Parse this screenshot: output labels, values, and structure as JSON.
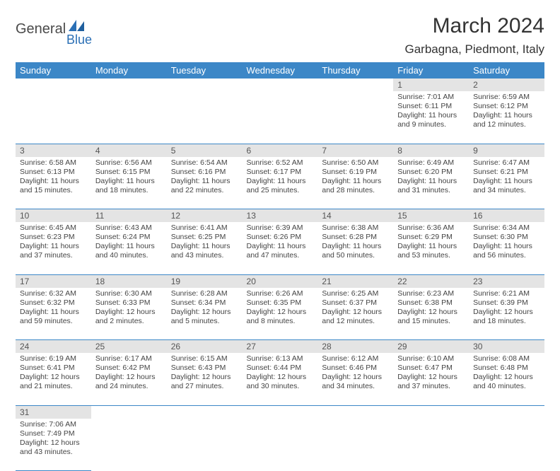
{
  "logo": {
    "text1": "General",
    "text2": "Blue"
  },
  "title": "March 2024",
  "location": "Garbagna, Piedmont, Italy",
  "colors": {
    "header_bg": "#3c87c7",
    "header_fg": "#ffffff",
    "daynum_bg": "#e4e4e4",
    "border": "#3c87c7",
    "logo_accent": "#2a6fb5",
    "logo_text": "#4a4a4a"
  },
  "weekdays": [
    "Sunday",
    "Monday",
    "Tuesday",
    "Wednesday",
    "Thursday",
    "Friday",
    "Saturday"
  ],
  "weeks": [
    [
      null,
      null,
      null,
      null,
      null,
      {
        "n": "1",
        "sunrise": "Sunrise: 7:01 AM",
        "sunset": "Sunset: 6:11 PM",
        "daylight": "Daylight: 11 hours and 9 minutes."
      },
      {
        "n": "2",
        "sunrise": "Sunrise: 6:59 AM",
        "sunset": "Sunset: 6:12 PM",
        "daylight": "Daylight: 11 hours and 12 minutes."
      }
    ],
    [
      {
        "n": "3",
        "sunrise": "Sunrise: 6:58 AM",
        "sunset": "Sunset: 6:13 PM",
        "daylight": "Daylight: 11 hours and 15 minutes."
      },
      {
        "n": "4",
        "sunrise": "Sunrise: 6:56 AM",
        "sunset": "Sunset: 6:15 PM",
        "daylight": "Daylight: 11 hours and 18 minutes."
      },
      {
        "n": "5",
        "sunrise": "Sunrise: 6:54 AM",
        "sunset": "Sunset: 6:16 PM",
        "daylight": "Daylight: 11 hours and 22 minutes."
      },
      {
        "n": "6",
        "sunrise": "Sunrise: 6:52 AM",
        "sunset": "Sunset: 6:17 PM",
        "daylight": "Daylight: 11 hours and 25 minutes."
      },
      {
        "n": "7",
        "sunrise": "Sunrise: 6:50 AM",
        "sunset": "Sunset: 6:19 PM",
        "daylight": "Daylight: 11 hours and 28 minutes."
      },
      {
        "n": "8",
        "sunrise": "Sunrise: 6:49 AM",
        "sunset": "Sunset: 6:20 PM",
        "daylight": "Daylight: 11 hours and 31 minutes."
      },
      {
        "n": "9",
        "sunrise": "Sunrise: 6:47 AM",
        "sunset": "Sunset: 6:21 PM",
        "daylight": "Daylight: 11 hours and 34 minutes."
      }
    ],
    [
      {
        "n": "10",
        "sunrise": "Sunrise: 6:45 AM",
        "sunset": "Sunset: 6:23 PM",
        "daylight": "Daylight: 11 hours and 37 minutes."
      },
      {
        "n": "11",
        "sunrise": "Sunrise: 6:43 AM",
        "sunset": "Sunset: 6:24 PM",
        "daylight": "Daylight: 11 hours and 40 minutes."
      },
      {
        "n": "12",
        "sunrise": "Sunrise: 6:41 AM",
        "sunset": "Sunset: 6:25 PM",
        "daylight": "Daylight: 11 hours and 43 minutes."
      },
      {
        "n": "13",
        "sunrise": "Sunrise: 6:39 AM",
        "sunset": "Sunset: 6:26 PM",
        "daylight": "Daylight: 11 hours and 47 minutes."
      },
      {
        "n": "14",
        "sunrise": "Sunrise: 6:38 AM",
        "sunset": "Sunset: 6:28 PM",
        "daylight": "Daylight: 11 hours and 50 minutes."
      },
      {
        "n": "15",
        "sunrise": "Sunrise: 6:36 AM",
        "sunset": "Sunset: 6:29 PM",
        "daylight": "Daylight: 11 hours and 53 minutes."
      },
      {
        "n": "16",
        "sunrise": "Sunrise: 6:34 AM",
        "sunset": "Sunset: 6:30 PM",
        "daylight": "Daylight: 11 hours and 56 minutes."
      }
    ],
    [
      {
        "n": "17",
        "sunrise": "Sunrise: 6:32 AM",
        "sunset": "Sunset: 6:32 PM",
        "daylight": "Daylight: 11 hours and 59 minutes."
      },
      {
        "n": "18",
        "sunrise": "Sunrise: 6:30 AM",
        "sunset": "Sunset: 6:33 PM",
        "daylight": "Daylight: 12 hours and 2 minutes."
      },
      {
        "n": "19",
        "sunrise": "Sunrise: 6:28 AM",
        "sunset": "Sunset: 6:34 PM",
        "daylight": "Daylight: 12 hours and 5 minutes."
      },
      {
        "n": "20",
        "sunrise": "Sunrise: 6:26 AM",
        "sunset": "Sunset: 6:35 PM",
        "daylight": "Daylight: 12 hours and 8 minutes."
      },
      {
        "n": "21",
        "sunrise": "Sunrise: 6:25 AM",
        "sunset": "Sunset: 6:37 PM",
        "daylight": "Daylight: 12 hours and 12 minutes."
      },
      {
        "n": "22",
        "sunrise": "Sunrise: 6:23 AM",
        "sunset": "Sunset: 6:38 PM",
        "daylight": "Daylight: 12 hours and 15 minutes."
      },
      {
        "n": "23",
        "sunrise": "Sunrise: 6:21 AM",
        "sunset": "Sunset: 6:39 PM",
        "daylight": "Daylight: 12 hours and 18 minutes."
      }
    ],
    [
      {
        "n": "24",
        "sunrise": "Sunrise: 6:19 AM",
        "sunset": "Sunset: 6:41 PM",
        "daylight": "Daylight: 12 hours and 21 minutes."
      },
      {
        "n": "25",
        "sunrise": "Sunrise: 6:17 AM",
        "sunset": "Sunset: 6:42 PM",
        "daylight": "Daylight: 12 hours and 24 minutes."
      },
      {
        "n": "26",
        "sunrise": "Sunrise: 6:15 AM",
        "sunset": "Sunset: 6:43 PM",
        "daylight": "Daylight: 12 hours and 27 minutes."
      },
      {
        "n": "27",
        "sunrise": "Sunrise: 6:13 AM",
        "sunset": "Sunset: 6:44 PM",
        "daylight": "Daylight: 12 hours and 30 minutes."
      },
      {
        "n": "28",
        "sunrise": "Sunrise: 6:12 AM",
        "sunset": "Sunset: 6:46 PM",
        "daylight": "Daylight: 12 hours and 34 minutes."
      },
      {
        "n": "29",
        "sunrise": "Sunrise: 6:10 AM",
        "sunset": "Sunset: 6:47 PM",
        "daylight": "Daylight: 12 hours and 37 minutes."
      },
      {
        "n": "30",
        "sunrise": "Sunrise: 6:08 AM",
        "sunset": "Sunset: 6:48 PM",
        "daylight": "Daylight: 12 hours and 40 minutes."
      }
    ],
    [
      {
        "n": "31",
        "sunrise": "Sunrise: 7:06 AM",
        "sunset": "Sunset: 7:49 PM",
        "daylight": "Daylight: 12 hours and 43 minutes."
      },
      null,
      null,
      null,
      null,
      null,
      null
    ]
  ]
}
